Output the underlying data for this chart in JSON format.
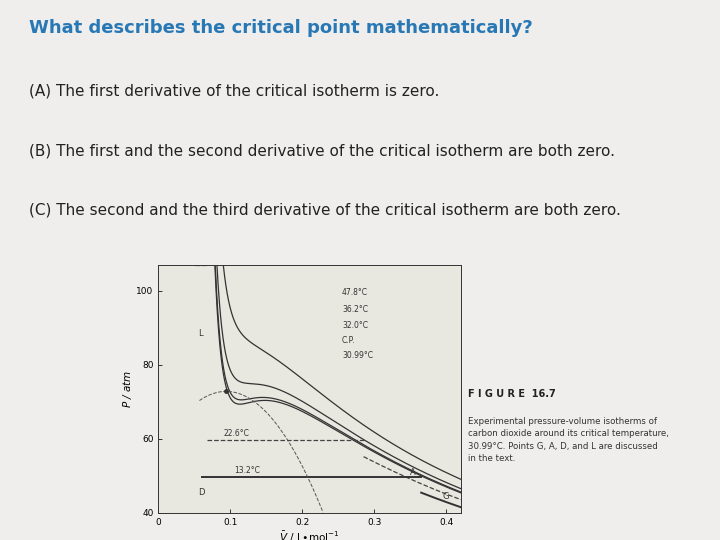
{
  "title": "What describes the critical point mathematically?",
  "title_color": "#2878b5",
  "title_fontsize": 13,
  "options": [
    "(A) The first derivative of the critical isotherm is zero.",
    "(B) The first and the second derivative of the critical isotherm are both zero.",
    "(C) The second and the third derivative of the critical isotherm are both zero."
  ],
  "option_fontsize": 11,
  "option_color": "#222222",
  "background_color": "#ffffff",
  "figure_caption": "F I G U R E  16.7",
  "figure_desc": "Experimental pressure-volume isotherms of\ncarbon dioxide around its critical temperature,\n30.99°C. Points G, A, D, and L are discussed\nin the text.",
  "plot_bg": "#e8e8e0",
  "slide_bg": "#f0eeec"
}
